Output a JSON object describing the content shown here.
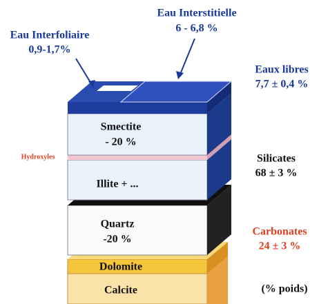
{
  "water": {
    "interstitial": {
      "label": "Eau Interstitielle",
      "value": "6 - 6,8 %"
    },
    "interfoliar": {
      "label": "Eau Interfoliaire",
      "value": "0,9-1,7%"
    },
    "free": {
      "label": "Eaux libres",
      "value": "7,7 ± 0,4 %"
    }
  },
  "layers": {
    "smectite": {
      "label": "Smectite",
      "value": "- 20 %"
    },
    "hydroxyles": "Hydroxyles",
    "illite": "Illite + ...",
    "quartz": {
      "label": "Quartz",
      "value": "-20 %"
    },
    "dolomite": "Dolomite",
    "calcite": "Calcite"
  },
  "groups": {
    "silicates": {
      "label": "Silicates",
      "value": "68 ± 3 %"
    },
    "carbonates": {
      "label": "Carbonates",
      "value": "24 ± 3 %"
    },
    "unit": "(% poids)"
  }
}
